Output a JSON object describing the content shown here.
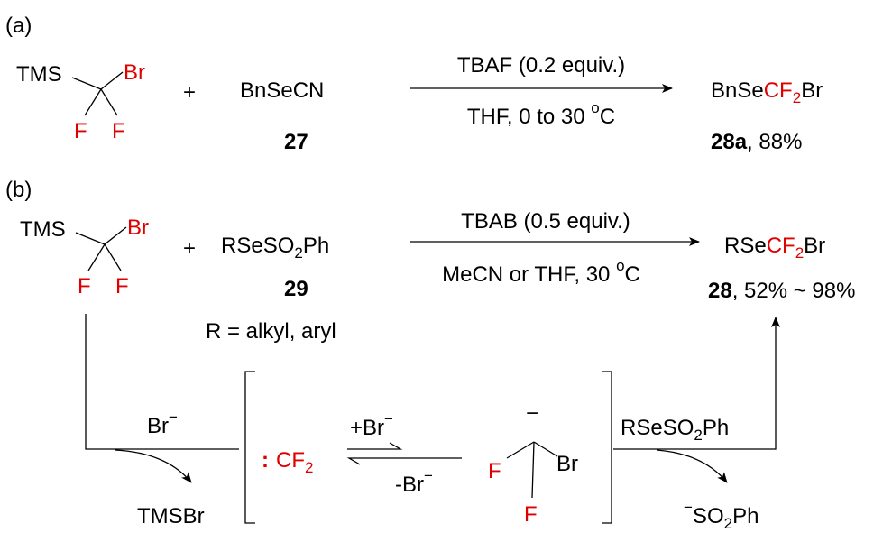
{
  "scheme_a": {
    "label": "(a)",
    "reagent_1": {
      "group": "TMS",
      "halogen": "Br",
      "fluorine_1": "F",
      "fluorine_2": "F"
    },
    "plus": "+",
    "reagent_2": "BnSeCN",
    "reagent_2_number": "27",
    "condition_above": "TBAF (0.2 equiv.)",
    "condition_below": {
      "text": "THF, 0 to 30 ",
      "superscript": "o",
      "unit": "C"
    },
    "product": {
      "prefix": "BnSe",
      "cf": "CF",
      "subscript": "2",
      "suffix": "Br"
    },
    "product_number": "28a",
    "product_yield": ", 88%"
  },
  "scheme_b": {
    "label": "(b)",
    "reagent_1": {
      "group": "TMS",
      "halogen": "Br",
      "fluorine_1": "F",
      "fluorine_2": "F"
    },
    "plus": "+",
    "reagent_2": {
      "prefix": "RSeSO",
      "subscript": "2",
      "suffix": "Ph"
    },
    "reagent_2_number": "29",
    "note": "R = alkyl, aryl",
    "condition_above": "TBAB (0.5 equiv.)",
    "condition_below": {
      "text": "MeCN or THF, 30 ",
      "superscript": "o",
      "unit": "C"
    },
    "product": {
      "prefix": "RSe",
      "cf": "CF",
      "subscript": "2",
      "suffix": "Br"
    },
    "product_number": "28",
    "product_yield": ", 52% ~ 98%"
  },
  "mechanism": {
    "bromide": {
      "text": "Br",
      "charge": "−"
    },
    "byproduct_1": "TMSBr",
    "carbene": {
      "dots": ":",
      "text": "CF",
      "subscript": "2"
    },
    "forward": {
      "text": "+Br",
      "charge": "−"
    },
    "reverse": {
      "text": "-Br",
      "charge": "−"
    },
    "anion": {
      "charge": "−",
      "fluorine_1": "F",
      "fluorine_2": "F",
      "halogen": "Br"
    },
    "reagent": {
      "prefix": "RSeSO",
      "subscript": "2",
      "suffix": "Ph"
    },
    "byproduct_2": {
      "charge": "−",
      "prefix": "SO",
      "subscript": "2",
      "suffix": "Ph"
    }
  }
}
